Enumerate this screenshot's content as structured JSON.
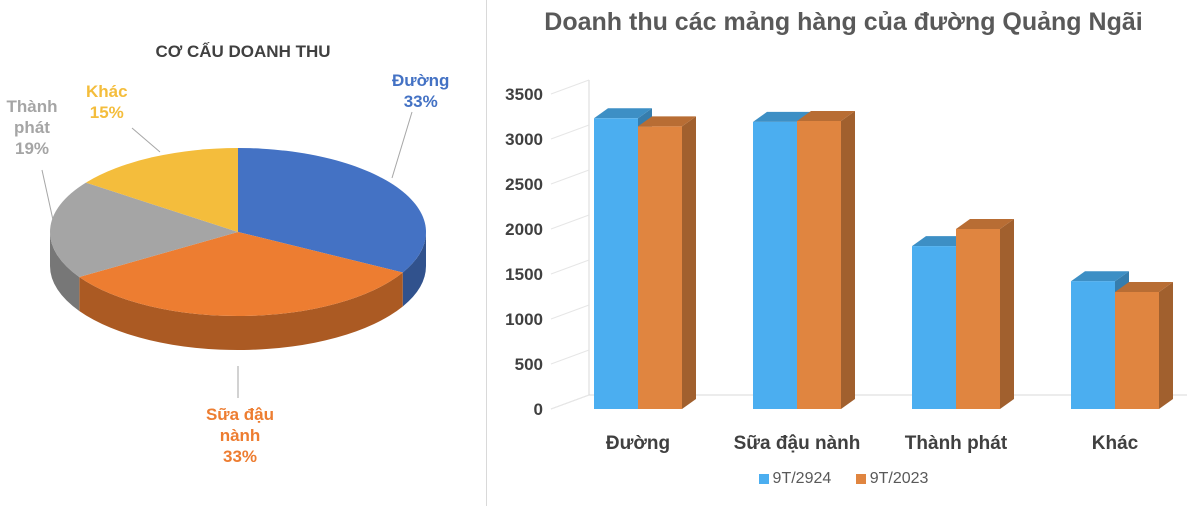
{
  "chart_data": [
    {
      "type": "pie",
      "title": "CƠ CẤU DOANH THU",
      "slices": [
        {
          "label": "Đường",
          "value": 33,
          "value_label": "33%",
          "color": "#4472c4"
        },
        {
          "label": "Sữa đậu nành",
          "value": 33,
          "value_label": "33%",
          "color": "#ed7d31"
        },
        {
          "label": "Thành phát",
          "value": 19,
          "value_label": "19%",
          "color": "#a5a5a5"
        },
        {
          "label": "Khác",
          "value": 15,
          "value_label": "15%",
          "color": "#f4bd3c"
        }
      ]
    },
    {
      "type": "bar",
      "title": "Doanh thu các mảng hàng của đường Quảng Ngãi",
      "categories": [
        "Đường",
        "Sữa đậu nành",
        "Thành phát",
        "Khác"
      ],
      "series": [
        {
          "name": "9T/2924",
          "values": [
            3230,
            3190,
            1810,
            1420
          ],
          "color": "#4baef0"
        },
        {
          "name": "9T/2023",
          "values": [
            3140,
            3200,
            2000,
            1300
          ],
          "color": "#e08540"
        }
      ],
      "ylim": [
        0,
        3500
      ],
      "yticks": [
        0,
        500,
        1000,
        1500,
        2000,
        2500,
        3000,
        3500
      ],
      "grid": false,
      "legend": "bottom"
    }
  ]
}
